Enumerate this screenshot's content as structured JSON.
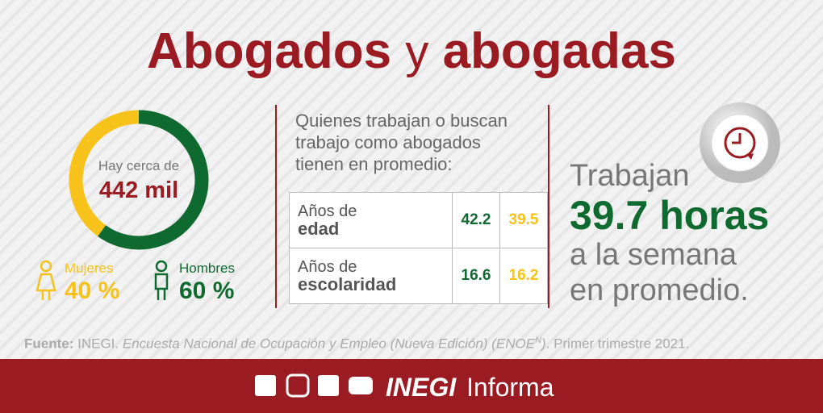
{
  "title": {
    "part1": "Abogados",
    "part2": "y",
    "part3": "abogadas"
  },
  "donut": {
    "center_line1": "Hay cerca de",
    "center_line2": "442 mil",
    "segments": [
      {
        "name": "Mujeres",
        "value": 40,
        "value_label": "40 %",
        "color": "#f7c21a"
      },
      {
        "name": "Hombres",
        "value": 60,
        "value_label": "60 %",
        "color": "#0e6a2f"
      }
    ]
  },
  "intro": [
    "Quienes trabajan o buscan",
    "trabajo como abogados",
    "tienen en promedio:"
  ],
  "table": {
    "rows": [
      [
        "Años de",
        "edad",
        42.2,
        39.5
      ],
      [
        "Años de",
        "escolaridad",
        16.6,
        16.2
      ]
    ]
  },
  "hours": {
    "line1": "Trabajan",
    "line2": "39.7 horas",
    "line3": "a la semana",
    "line4": "en promedio."
  },
  "source": {
    "label": "Fuente:",
    "org": "INEGI.",
    "survey": "Encuesta Nacional de Ocupación y Empleo (Nueva Edición) (ENOE",
    "sup": "N",
    "close": ")",
    "period": ". Primer trimestre 2021."
  },
  "footer": {
    "brand": "INEGI",
    "suffix": "Informa"
  }
}
